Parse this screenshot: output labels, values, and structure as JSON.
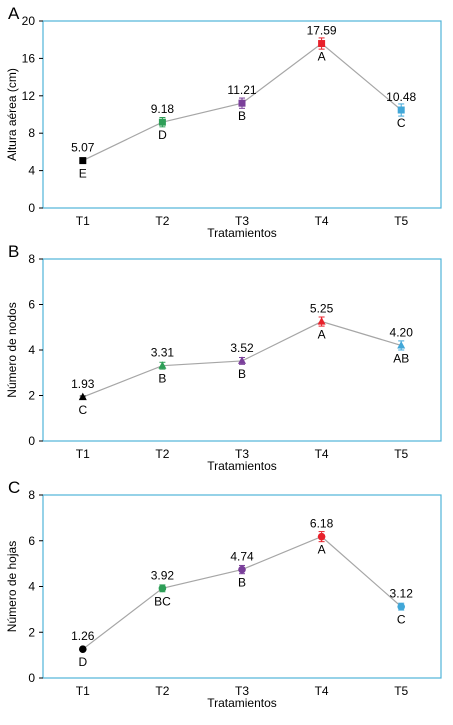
{
  "chart_data": [
    {
      "type": "line",
      "panel_label": "A",
      "xlabel": "Tratamientos",
      "ylabel": "Altura aérea (cm)",
      "categories": [
        "T1",
        "T2",
        "T3",
        "T4",
        "T5"
      ],
      "values": [
        5.07,
        9.18,
        11.21,
        17.59,
        10.48
      ],
      "value_labels": [
        "5.07",
        "9.18",
        "11.21",
        "17.59",
        "10.48"
      ],
      "error": [
        0.15,
        0.5,
        0.55,
        0.6,
        0.65
      ],
      "letters": [
        "E",
        "D",
        "B",
        "A",
        "C"
      ],
      "ylim": [
        0,
        20
      ],
      "yticks": [
        0,
        4,
        8,
        12,
        16,
        20
      ],
      "marker": "square",
      "grid": false
    },
    {
      "type": "line",
      "panel_label": "B",
      "xlabel": "Tratamientos",
      "ylabel": "Número de nodos",
      "categories": [
        "T1",
        "T2",
        "T3",
        "T4",
        "T5"
      ],
      "values": [
        1.93,
        3.31,
        3.52,
        5.25,
        4.2
      ],
      "value_labels": [
        "1.93",
        "3.31",
        "3.52",
        "5.25",
        "4.20"
      ],
      "error": [
        0.05,
        0.15,
        0.15,
        0.2,
        0.2
      ],
      "letters": [
        "C",
        "B",
        "B",
        "A",
        "AB"
      ],
      "ylim": [
        0,
        8
      ],
      "yticks": [
        0,
        2,
        4,
        6,
        8
      ],
      "marker": "triangle",
      "grid": false
    },
    {
      "type": "line",
      "panel_label": "C",
      "xlabel": "Tratamientos",
      "ylabel": "Número de hojas",
      "categories": [
        "T1",
        "T2",
        "T3",
        "T4",
        "T5"
      ],
      "values": [
        1.26,
        3.92,
        4.74,
        6.18,
        3.12
      ],
      "value_labels": [
        "1.26",
        "3.92",
        "4.74",
        "6.18",
        "3.12"
      ],
      "error": [
        0.05,
        0.15,
        0.18,
        0.22,
        0.15
      ],
      "letters": [
        "D",
        "BC",
        "B",
        "A",
        "C"
      ],
      "ylim": [
        0,
        8
      ],
      "yticks": [
        0,
        2,
        4,
        6,
        8
      ],
      "marker": "circle",
      "grid": false
    }
  ],
  "colors": {
    "frame": "#4fb3d9",
    "line": "#a6a6a6",
    "points": [
      "#000000",
      "#2e9e57",
      "#7a3f9a",
      "#e8212b",
      "#41a7d8"
    ],
    "text": "#000000"
  }
}
